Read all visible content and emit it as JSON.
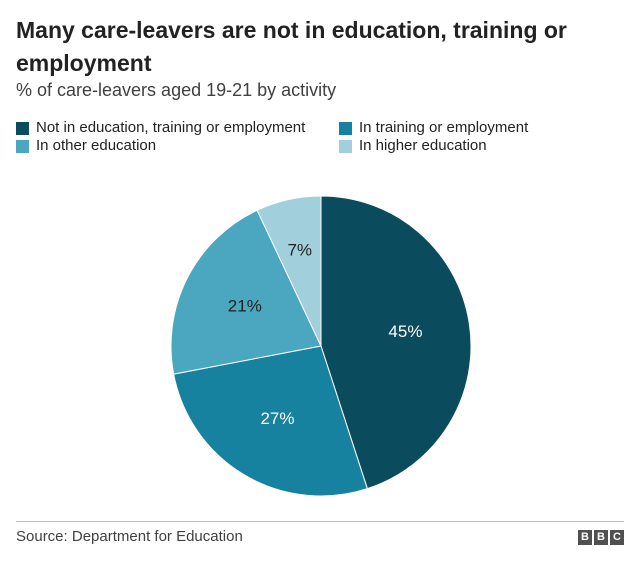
{
  "title": "Many care-leavers are not in education, training or employment",
  "subtitle": "% of care-leavers aged 19-21 by activity",
  "source": "Source: Department for Education",
  "brand": [
    "B",
    "B",
    "C"
  ],
  "chart_data": {
    "type": "pie",
    "title": "Many care-leavers are not in education, training or employment",
    "subtitle": "% of care-leavers aged 19-21 by activity",
    "legend_position": "top",
    "slices": [
      {
        "label": "Not in education, training or employment",
        "value": 45,
        "display": "45%",
        "color": "#0b4b5e",
        "text_color": "#ffffff"
      },
      {
        "label": "In training or employment",
        "value": 27,
        "display": "27%",
        "color": "#1781a0",
        "text_color": "#ffffff"
      },
      {
        "label": "In other education",
        "value": 21,
        "display": "21%",
        "color": "#4aa7bf",
        "text_color": "#222222"
      },
      {
        "label": "In higher education",
        "value": 7,
        "display": "7%",
        "color": "#a1cfdc",
        "text_color": "#222222"
      }
    ]
  }
}
